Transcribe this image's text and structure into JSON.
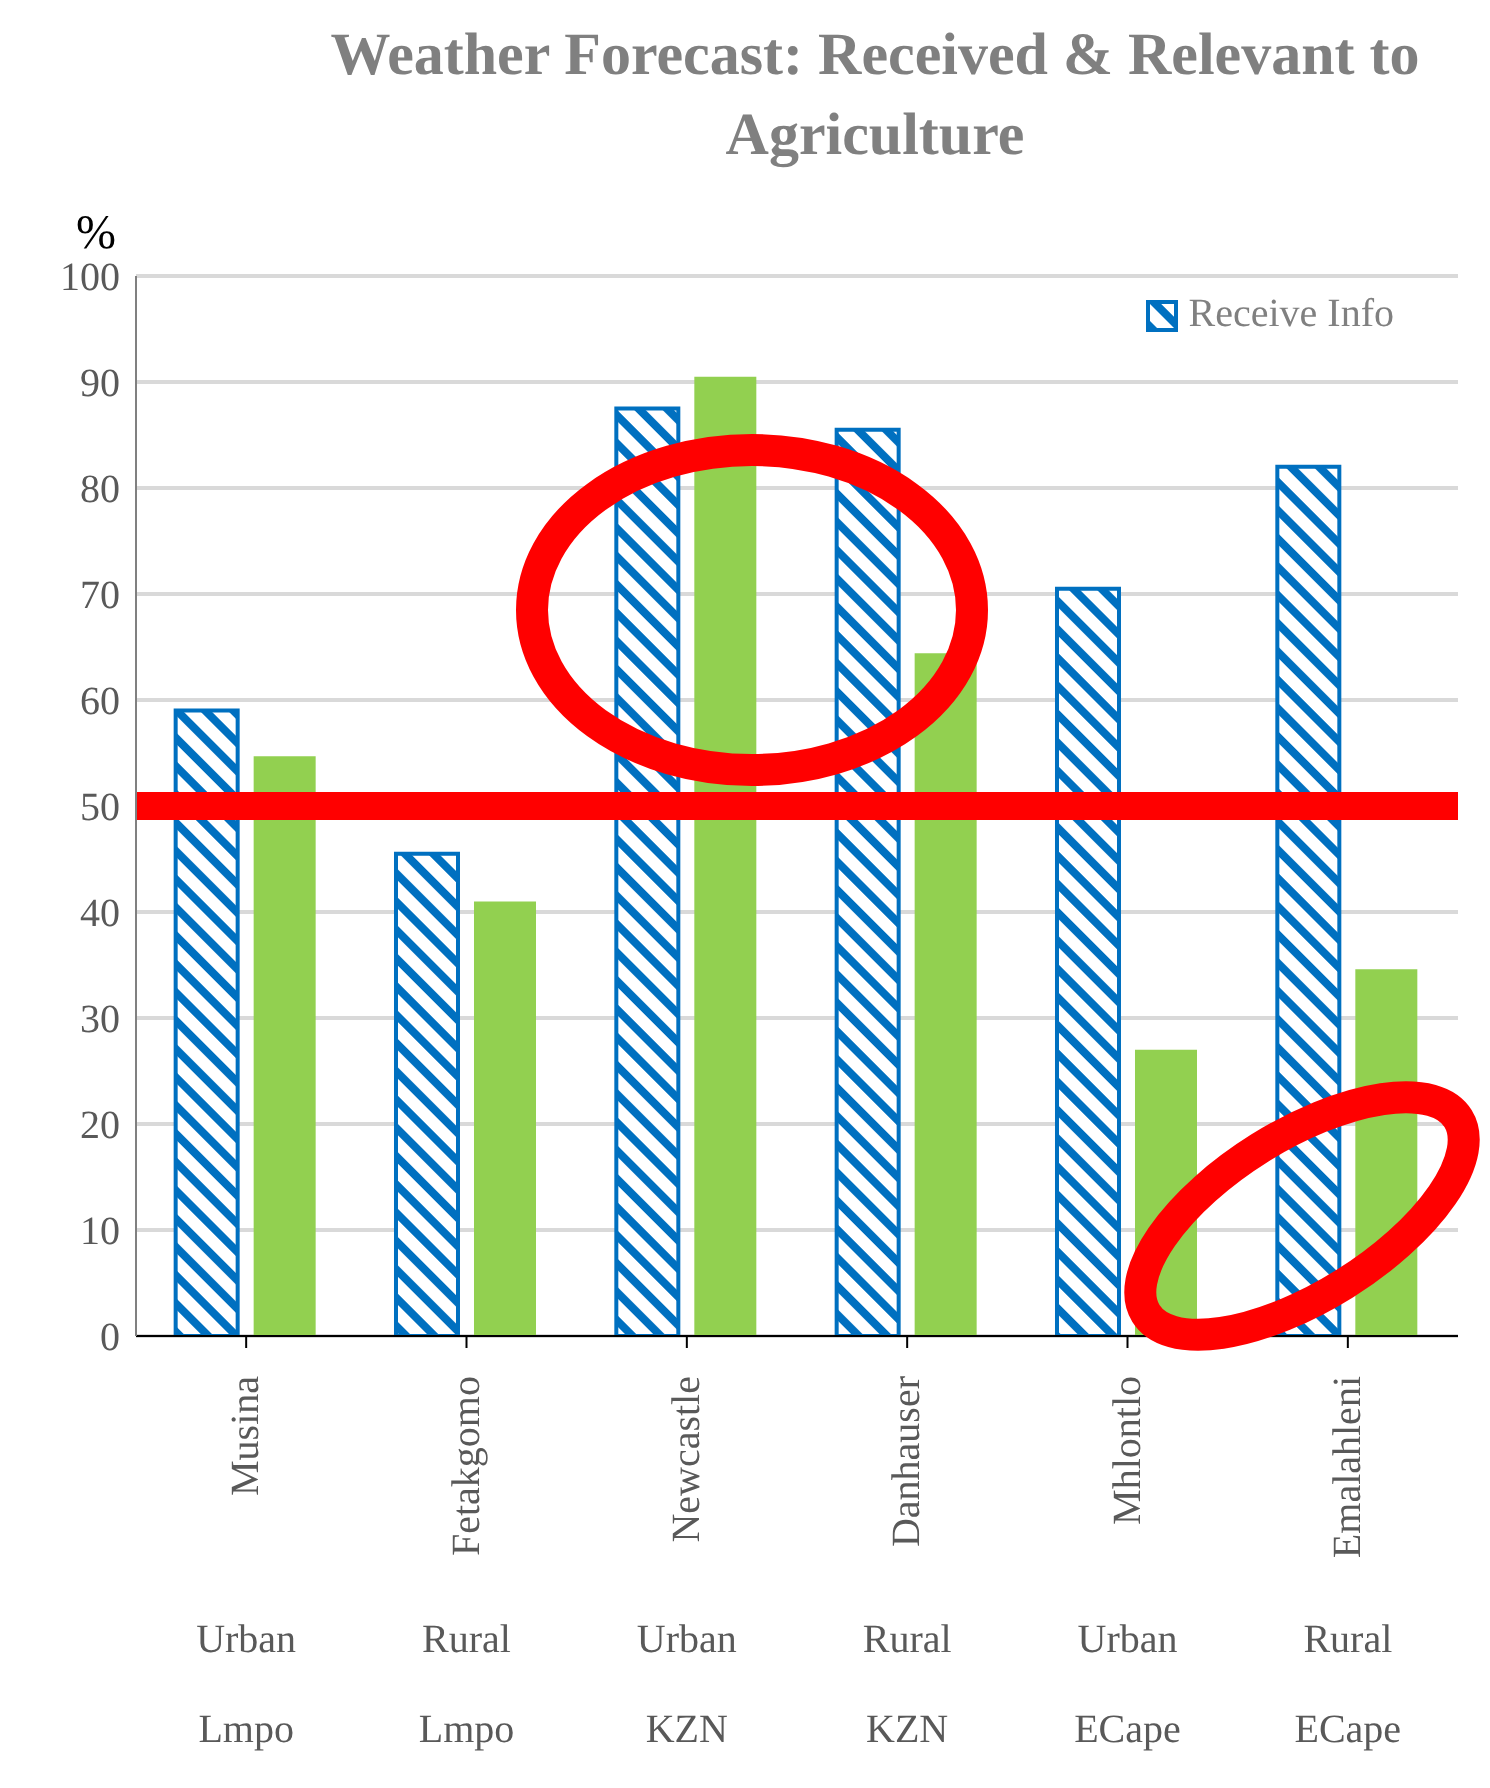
{
  "chart_data": {
    "type": "bar",
    "title": "Weather Forecast: Received & Relevant to Agriculture",
    "ylabel": "%",
    "categories": [
      "Musina\nUrban\nLmpo",
      "Fetakgomo\nRural\nLmpo",
      "Newcastle\nUrban\nKZN",
      "Danhauser\nRural\nKZN",
      "Mhlontlo\nUrban\nECape",
      "Emalahleni\nRural\nECape"
    ],
    "series": [
      {
        "name": "Receive Info",
        "color": "#0070c0",
        "values": [
          59,
          45.5,
          87.5,
          85.5,
          70.5,
          82
        ]
      },
      {
        "color": "#92d050",
        "values": [
          54.7,
          41,
          90.5,
          64.4,
          27,
          34.6
        ]
      }
    ],
    "ylim": [
      0,
      100
    ],
    "yticks": [
      0,
      10,
      20,
      30,
      40,
      50,
      60,
      70,
      80,
      90,
      100
    ],
    "grid": "y",
    "legend": "top right",
    "ref_lines": [
      {
        "axis": "y",
        "value": 50,
        "color": "#ff0000"
      }
    ]
  }
}
